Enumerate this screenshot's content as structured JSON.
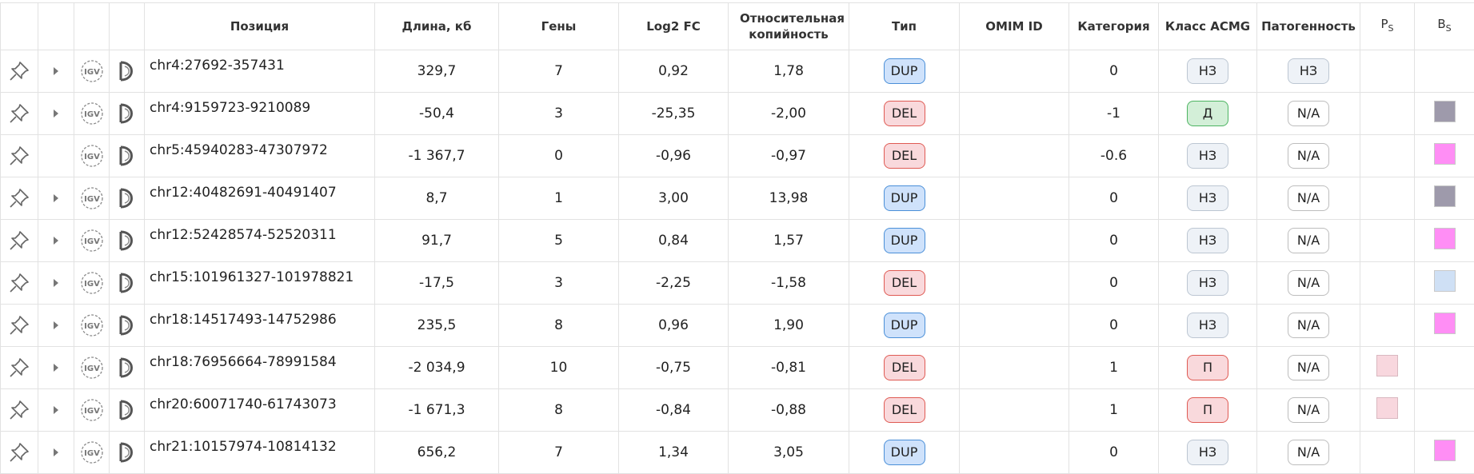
{
  "header": {
    "position": "Позиция",
    "length": "Длина, кб",
    "genes": "Гены",
    "log2fc": "Log2 FC",
    "rel_copy": "Относительная копийность",
    "type": "Тип",
    "omim": "OMIM ID",
    "category": "Категория",
    "acmg": "Класс ACMG",
    "pathogenicity": "Патогенность",
    "ps": {
      "main": "P",
      "sub": "S"
    },
    "bs": {
      "main": "B",
      "sub": "S"
    }
  },
  "rows": [
    {
      "expandable": true,
      "position": "chr4:27692-357431",
      "length": "329,7",
      "genes": 7,
      "log2fc": "0,92",
      "rel_copy": "1,78",
      "type": {
        "text": "DUP",
        "color": "blue"
      },
      "category": 0,
      "acmg": {
        "text": "НЗ",
        "color": "grey"
      },
      "pathogenicity": {
        "text": "НЗ",
        "color": "grey"
      },
      "ps": null,
      "bs": null
    },
    {
      "expandable": true,
      "position": "chr4:9159723-9210089",
      "length": "-50,4",
      "genes": 3,
      "log2fc": "-25,35",
      "rel_copy": "-2,00",
      "type": {
        "text": "DEL",
        "color": "red"
      },
      "category": -1,
      "acmg": {
        "text": "Д",
        "color": "green"
      },
      "pathogenicity": {
        "text": "N/A",
        "color": "white"
      },
      "ps": null,
      "bs": "#9e9aab"
    },
    {
      "expandable": false,
      "position": "chr5:45940283-47307972",
      "length": "-1 367,7",
      "genes": 0,
      "log2fc": "-0,96",
      "rel_copy": "-0,97",
      "type": {
        "text": "DEL",
        "color": "red"
      },
      "category": -0.6,
      "acmg": {
        "text": "НЗ",
        "color": "grey"
      },
      "pathogenicity": {
        "text": "N/A",
        "color": "white"
      },
      "ps": null,
      "bs": "#ff8ef5"
    },
    {
      "expandable": true,
      "position": "chr12:40482691-40491407",
      "length": "8,7",
      "genes": 1,
      "log2fc": "3,00",
      "rel_copy": "13,98",
      "type": {
        "text": "DUP",
        "color": "blue"
      },
      "category": 0,
      "acmg": {
        "text": "НЗ",
        "color": "grey"
      },
      "pathogenicity": {
        "text": "N/A",
        "color": "white"
      },
      "ps": null,
      "bs": "#9e9aab"
    },
    {
      "expandable": true,
      "position": "chr12:52428574-52520311",
      "length": "91,7",
      "genes": 5,
      "log2fc": "0,84",
      "rel_copy": "1,57",
      "type": {
        "text": "DUP",
        "color": "blue"
      },
      "category": 0,
      "acmg": {
        "text": "НЗ",
        "color": "grey"
      },
      "pathogenicity": {
        "text": "N/A",
        "color": "white"
      },
      "ps": null,
      "bs": "#ff8ef5"
    },
    {
      "expandable": true,
      "position": "chr15:101961327-101978821",
      "length": "-17,5",
      "genes": 3,
      "log2fc": "-2,25",
      "rel_copy": "-1,58",
      "type": {
        "text": "DEL",
        "color": "red"
      },
      "category": 0,
      "acmg": {
        "text": "НЗ",
        "color": "grey"
      },
      "pathogenicity": {
        "text": "N/A",
        "color": "white"
      },
      "ps": null,
      "bs": "#cfe0f5"
    },
    {
      "expandable": true,
      "position": "chr18:14517493-14752986",
      "length": "235,5",
      "genes": 8,
      "log2fc": "0,96",
      "rel_copy": "1,90",
      "type": {
        "text": "DUP",
        "color": "blue"
      },
      "category": 0,
      "acmg": {
        "text": "НЗ",
        "color": "grey"
      },
      "pathogenicity": {
        "text": "N/A",
        "color": "white"
      },
      "ps": null,
      "bs": "#ff8ef5"
    },
    {
      "expandable": true,
      "position": "chr18:76956664-78991584",
      "length": "-2 034,9",
      "genes": 10,
      "log2fc": "-0,75",
      "rel_copy": "-0,81",
      "type": {
        "text": "DEL",
        "color": "red"
      },
      "category": 1,
      "acmg": {
        "text": "П",
        "color": "red"
      },
      "pathogenicity": {
        "text": "N/A",
        "color": "white"
      },
      "ps": "#f8d7de",
      "bs": null
    },
    {
      "expandable": true,
      "position": "chr20:60071740-61743073",
      "length": "-1 671,3",
      "genes": 8,
      "log2fc": "-0,84",
      "rel_copy": "-0,88",
      "type": {
        "text": "DEL",
        "color": "red"
      },
      "category": 1,
      "acmg": {
        "text": "П",
        "color": "red"
      },
      "pathogenicity": {
        "text": "N/A",
        "color": "white"
      },
      "ps": "#f8d7de",
      "bs": null
    },
    {
      "expandable": true,
      "position": "chr21:10157974-10814132",
      "length": "656,2",
      "genes": 7,
      "log2fc": "1,34",
      "rel_copy": "3,05",
      "type": {
        "text": "DUP",
        "color": "blue"
      },
      "category": 0,
      "acmg": {
        "text": "НЗ",
        "color": "grey"
      },
      "pathogenicity": {
        "text": "N/A",
        "color": "white"
      },
      "ps": null,
      "bs": "#ff8ef5"
    }
  ]
}
